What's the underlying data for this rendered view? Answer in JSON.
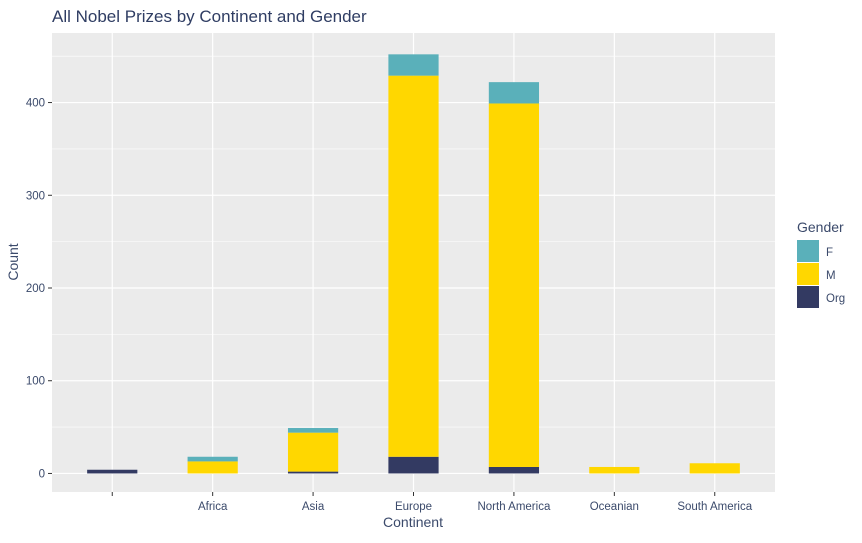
{
  "chart_data": {
    "type": "bar",
    "stacked": true,
    "title": "All Nobel Prizes by Continent and Gender",
    "xlabel": "Continent",
    "ylabel": "Count",
    "categories": [
      "",
      "Africa",
      "Asia",
      "Europe",
      "North America",
      "Oceanian",
      "South America"
    ],
    "series": [
      {
        "name": "Org",
        "color": "#333a62",
        "values": [
          4,
          0,
          2,
          18,
          7,
          0,
          0
        ]
      },
      {
        "name": "M",
        "color": "#ffd700",
        "values": [
          0,
          13,
          42,
          411,
          392,
          7,
          11
        ]
      },
      {
        "name": "F",
        "color": "#5ab0ba",
        "values": [
          0,
          5,
          5,
          23,
          23,
          0,
          0
        ]
      }
    ],
    "ylim": [
      -20,
      475
    ],
    "yticks": [
      0,
      100,
      200,
      300,
      400
    ],
    "grid": true,
    "legend": {
      "title": "Gender",
      "position": "right",
      "order": [
        "F",
        "M",
        "Org"
      ]
    },
    "colors": {
      "panel": "#ebebeb",
      "grid": "#ffffff",
      "text": "#3b4a6b",
      "title": "#2f3d63"
    }
  }
}
